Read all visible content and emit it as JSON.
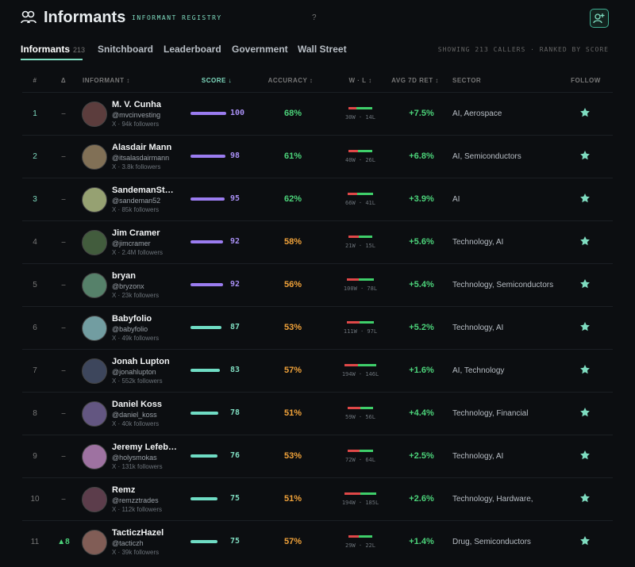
{
  "header": {
    "title": "Informants",
    "subtitle": "INFORMANT REGISTRY",
    "help": "?"
  },
  "tabs": [
    {
      "label": "Informants",
      "count": "213"
    },
    {
      "label": "Snitchboard"
    },
    {
      "label": "Leaderboard"
    },
    {
      "label": "Government"
    },
    {
      "label": "Wall Street"
    }
  ],
  "summary": "SHOWING 213 CALLERS · RANKED BY SCORE",
  "table": {
    "columns": [
      "#",
      "Δ",
      "INFORMANT ↕",
      "SCORE ↓",
      "ACCURACY ↕",
      "W · L ↕",
      "AVG 7D RET ↕",
      "SECTOR",
      "FOLLOW"
    ],
    "rows": [
      {
        "rank": "1",
        "delta": "–",
        "name": "M. V. Cunha",
        "handle": "@mvcinvesting",
        "followers": "X · 94k followers",
        "score": 100,
        "accuracy": "68%",
        "wins": 30,
        "losses": 14,
        "wl": "30W · 14L",
        "ret": "+7.5%",
        "sector": "AI, Aerospace"
      },
      {
        "rank": "2",
        "delta": "–",
        "name": "Alasdair Mann",
        "handle": "@itsalasdairmann",
        "followers": "X · 3.8k followers",
        "score": 98,
        "accuracy": "61%",
        "wins": 40,
        "losses": 26,
        "wl": "40W · 26L",
        "ret": "+6.8%",
        "sector": "AI, Semiconductors"
      },
      {
        "rank": "3",
        "delta": "–",
        "name": "SandemanSt…",
        "handle": "@sandeman52",
        "followers": "X · 85k followers",
        "score": 95,
        "accuracy": "62%",
        "wins": 66,
        "losses": 41,
        "wl": "66W · 41L",
        "ret": "+3.9%",
        "sector": "AI"
      },
      {
        "rank": "4",
        "delta": "–",
        "name": "Jim Cramer",
        "handle": "@jimcramer",
        "followers": "X · 2.4M followers",
        "score": 92,
        "accuracy": "58%",
        "wins": 21,
        "losses": 15,
        "wl": "21W · 15L",
        "ret": "+5.6%",
        "sector": "Technology, AI"
      },
      {
        "rank": "5",
        "delta": "–",
        "name": "bryan",
        "handle": "@bryzonx",
        "followers": "X · 23k followers",
        "score": 92,
        "accuracy": "56%",
        "wins": 100,
        "losses": 78,
        "wl": "100W · 78L",
        "ret": "+5.4%",
        "sector": "Technology, Semiconductors"
      },
      {
        "rank": "6",
        "delta": "–",
        "name": "Babyfolio",
        "handle": "@babyfolio",
        "followers": "X · 49k followers",
        "score": 87,
        "accuracy": "53%",
        "wins": 111,
        "losses": 97,
        "wl": "111W · 97L",
        "ret": "+5.2%",
        "sector": "Technology, AI"
      },
      {
        "rank": "7",
        "delta": "–",
        "name": "Jonah Lupton",
        "handle": "@jonahlupton",
        "followers": "X · 552k followers",
        "score": 83,
        "accuracy": "57%",
        "wins": 194,
        "losses": 146,
        "wl": "194W · 146L",
        "ret": "+1.6%",
        "sector": "AI, Technology"
      },
      {
        "rank": "8",
        "delta": "–",
        "name": "Daniel Koss",
        "handle": "@daniel_koss",
        "followers": "X · 40k followers",
        "score": 78,
        "accuracy": "51%",
        "wins": 59,
        "losses": 56,
        "wl": "59W · 56L",
        "ret": "+4.4%",
        "sector": "Technology, Financial"
      },
      {
        "rank": "9",
        "delta": "–",
        "name": "Jeremy Lefeb…",
        "handle": "@holysmokas",
        "followers": "X · 131k followers",
        "score": 76,
        "accuracy": "53%",
        "wins": 72,
        "losses": 64,
        "wl": "72W · 64L",
        "ret": "+2.5%",
        "sector": "Technology, AI"
      },
      {
        "rank": "10",
        "delta": "–",
        "name": "Remz",
        "handle": "@remzztrades",
        "followers": "X · 112k followers",
        "score": 75,
        "accuracy": "51%",
        "wins": 194,
        "losses": 185,
        "wl": "194W · 185L",
        "ret": "+2.6%",
        "sector": "Technology, Hardware,"
      },
      {
        "rank": "11",
        "delta": "▲8",
        "name": "TacticzHazel",
        "handle": "@tacticzh",
        "followers": "X · 39k followers",
        "score": 75,
        "accuracy": "57%",
        "wins": 29,
        "losses": 22,
        "wl": "29W · 22L",
        "ret": "+1.4%",
        "sector": "Drug, Semiconductors"
      }
    ]
  }
}
